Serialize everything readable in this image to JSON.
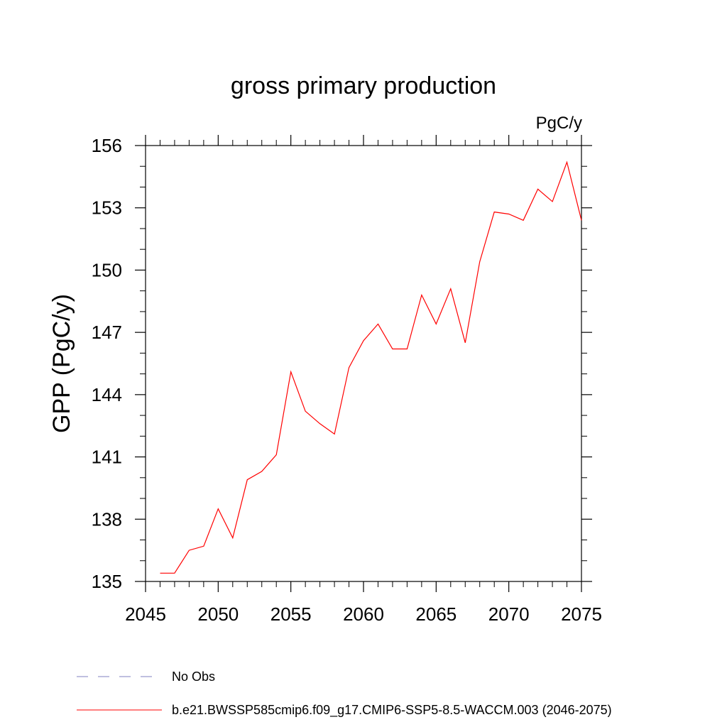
{
  "chart_data": {
    "type": "line",
    "title": "gross primary production",
    "units_label": "PgC/y",
    "xlabel": "",
    "ylabel": "GPP  (PgC/y)",
    "xlim": [
      2045,
      2075
    ],
    "ylim": [
      135,
      156
    ],
    "x_ticks": [
      2045,
      2050,
      2055,
      2060,
      2065,
      2070,
      2075
    ],
    "y_ticks": [
      135,
      138,
      141,
      144,
      147,
      150,
      153,
      156
    ],
    "x_tick_labels": [
      "2045",
      "2050",
      "2055",
      "2060",
      "2065",
      "2070",
      "2075"
    ],
    "y_tick_labels": [
      "135",
      "138",
      "141",
      "144",
      "147",
      "150",
      "153",
      "156"
    ],
    "grid": false,
    "legend_position": "bottom",
    "series": [
      {
        "name": "b.e21.BWSSP585cmip6.f09_g17.CMIP6-SSP5-8.5-WACCM.003 (2046-2075)",
        "color": "#ff0000",
        "style": "solid",
        "x": [
          2046,
          2047,
          2048,
          2049,
          2050,
          2051,
          2052,
          2053,
          2054,
          2055,
          2056,
          2057,
          2058,
          2059,
          2060,
          2061,
          2062,
          2063,
          2064,
          2065,
          2066,
          2067,
          2068,
          2069,
          2070,
          2071,
          2072,
          2073,
          2074,
          2075
        ],
        "values": [
          135.4,
          135.4,
          136.5,
          136.7,
          138.5,
          137.1,
          139.9,
          140.3,
          141.1,
          145.1,
          143.2,
          142.6,
          142.1,
          145.3,
          146.6,
          147.4,
          146.2,
          146.2,
          148.8,
          147.4,
          149.1,
          146.5,
          150.4,
          152.8,
          152.7,
          152.4,
          153.9,
          153.3,
          155.2,
          152.4
        ]
      },
      {
        "name": "No Obs",
        "color": "#8080c0",
        "style": "dashed",
        "x": [],
        "values": []
      }
    ]
  }
}
